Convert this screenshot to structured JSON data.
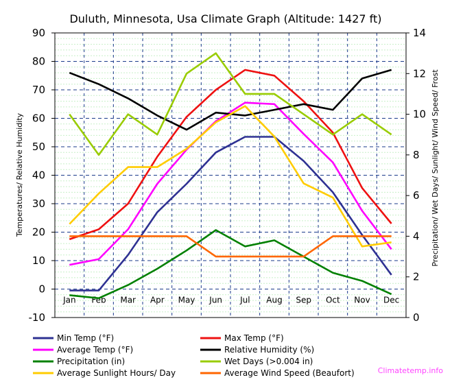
{
  "chart_data": {
    "type": "line",
    "title": "Duluth, Minnesota, Usa Climate Graph (Altitude: 1427 ft)",
    "ylabel_left": "Temperatures/ Relative Humidity",
    "ylabel_right": "Precipitation/ Wet Days/ Sunlight/ Wind Speed/ Frost",
    "ylim_left": [
      -10,
      90
    ],
    "yticks_left": [
      "-10",
      "0",
      "10",
      "20",
      "30",
      "40",
      "50",
      "60",
      "70",
      "80",
      "90"
    ],
    "ylim_right": [
      0,
      14
    ],
    "yticks_right": [
      "0",
      "2",
      "4",
      "6",
      "8",
      "10",
      "12",
      "14"
    ],
    "categories": [
      "Jan",
      "Feb",
      "Mar",
      "Apr",
      "May",
      "Jun",
      "Jul",
      "Aug",
      "Sep",
      "Oct",
      "Nov",
      "Dec"
    ],
    "grid": true,
    "legend": "bottom",
    "series": [
      {
        "name": "Min Temp (°F)",
        "axis": "left",
        "color": "#2e3192",
        "values": [
          -0.5,
          -0.5,
          12,
          27,
          37,
          48,
          53.5,
          53.5,
          45,
          34,
          19,
          5
        ]
      },
      {
        "name": "Max Temp (°F)",
        "axis": "right_label_left",
        "color": "#ee1111",
        "values": [
          17.5,
          21,
          30,
          46.5,
          60.5,
          70,
          77,
          75,
          66,
          55,
          35.5,
          23
        ]
      },
      {
        "name": "Average Temp (°F)",
        "axis": "left",
        "color": "#ff00ff",
        "values": [
          8.5,
          10.5,
          21,
          37,
          49,
          59,
          65.5,
          65,
          54.5,
          44.5,
          27.5,
          14
        ]
      },
      {
        "name": "Relative Humidity (%)",
        "axis": "left",
        "color": "#000000",
        "values": [
          76,
          72,
          67,
          61,
          56,
          62,
          61,
          63,
          65,
          63,
          74,
          77
        ]
      },
      {
        "name": "Precipitation (in)",
        "axis": "right",
        "color": "#008000",
        "values": [
          1.1,
          0.95,
          1.6,
          2.4,
          3.3,
          4.3,
          3.5,
          3.8,
          3.0,
          2.2,
          1.8,
          1.15
        ]
      },
      {
        "name": "Wet Days (>0.004 in)",
        "axis": "right",
        "color": "#99cc00",
        "values": [
          10,
          8,
          10,
          9,
          12,
          13,
          11,
          11,
          10,
          9,
          10,
          9
        ]
      },
      {
        "name": "Average Sunlight Hours/ Day",
        "axis": "right",
        "color": "#ffcc00",
        "values": [
          4.6,
          6.1,
          7.4,
          7.4,
          8.3,
          9.6,
          10.4,
          8.9,
          6.6,
          5.9,
          3.5,
          3.7
        ]
      },
      {
        "name": "Average Wind Speed (Beaufort)",
        "axis": "right",
        "color": "#ff6600",
        "values": [
          4,
          4,
          4,
          4,
          4,
          3,
          3,
          3,
          3,
          4,
          4,
          4
        ]
      }
    ],
    "watermark": "Climatetemp.info"
  }
}
